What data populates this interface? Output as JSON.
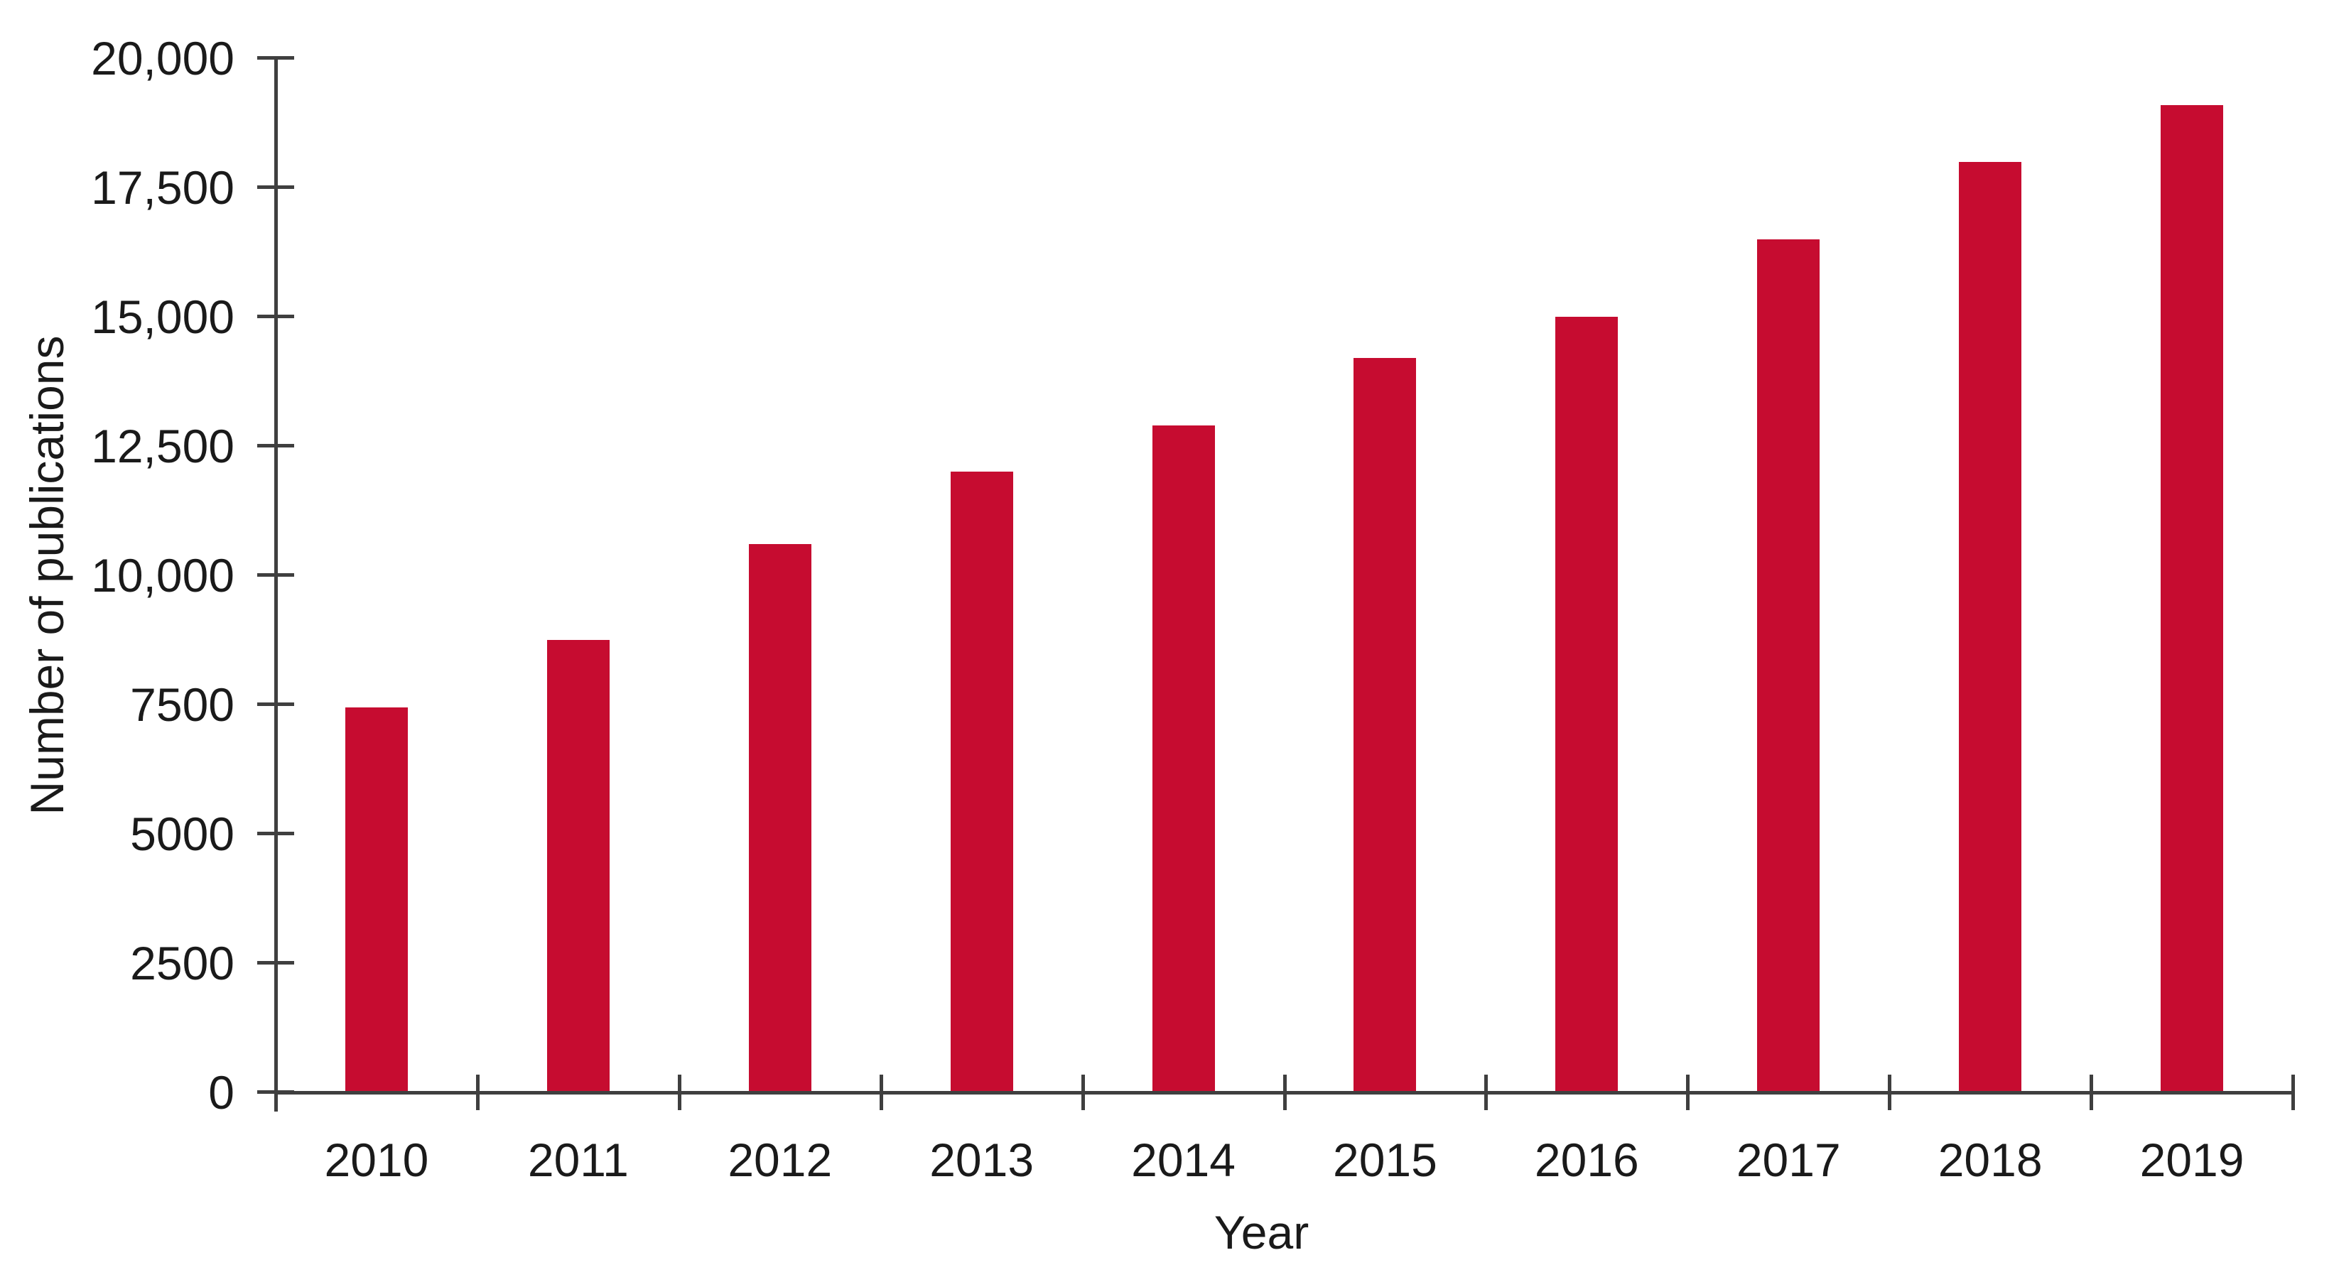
{
  "chart_data": {
    "type": "bar",
    "title": "",
    "xlabel": "Year",
    "ylabel": "Number of publications",
    "categories": [
      "2010",
      "2011",
      "2012",
      "2013",
      "2014",
      "2015",
      "2016",
      "2017",
      "2018",
      "2019"
    ],
    "values": [
      7450,
      8750,
      10600,
      12000,
      12900,
      14200,
      15000,
      16500,
      18000,
      19100
    ],
    "ylim": [
      0,
      20000
    ],
    "ytick_step": 2500,
    "ytick_labels": [
      "0",
      "2500",
      "5000",
      "7500",
      "10,000",
      "12,500",
      "15,000",
      "17,500",
      "20,000"
    ],
    "grid": false,
    "legend": "none",
    "bar_color": "#C60C30",
    "axis_color": "#3F3F3F",
    "text_color": "#1A1A1A",
    "background_color": "#FFFFFF"
  }
}
